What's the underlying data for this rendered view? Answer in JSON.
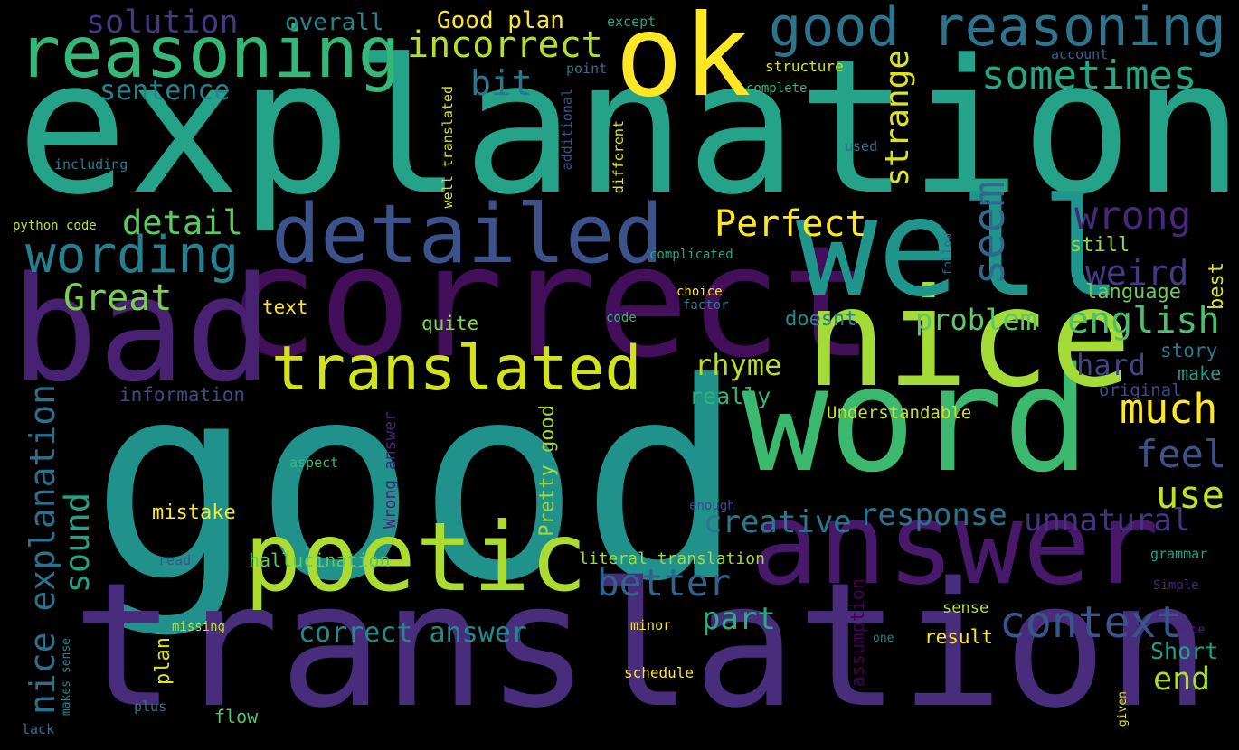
{
  "words": [
    {
      "text": "explanation",
      "color": "#24a388"
    },
    {
      "text": "good",
      "color": "#21918c"
    },
    {
      "text": "translation",
      "color": "#472d7b"
    },
    {
      "text": "correct",
      "color": "#440f5a"
    },
    {
      "text": "word",
      "color": "#3bb96f"
    },
    {
      "text": "nice",
      "color": "#a5db36"
    },
    {
      "text": "answer",
      "color": "#48196b"
    },
    {
      "text": "bad",
      "color": "#482173"
    },
    {
      "text": "well",
      "color": "#1f958b"
    },
    {
      "text": "ok",
      "color": "#fde725"
    },
    {
      "text": "poetic",
      "color": "#addc30"
    },
    {
      "text": "detailed",
      "color": "#3b528b"
    },
    {
      "text": "reasoning",
      "color": "#35b779"
    },
    {
      "text": "good reasoning",
      "color": "#2c738e"
    },
    {
      "text": "translated",
      "color": "#d2e21b"
    },
    {
      "text": "wording",
      "color": "#277f8e"
    },
    {
      "text": "context",
      "color": "#39568c"
    },
    {
      "text": "sometimes",
      "color": "#22a884"
    },
    {
      "text": "incorrect",
      "color": "#b5de2b"
    },
    {
      "text": "Perfect",
      "color": "#fde725"
    },
    {
      "text": "Great",
      "color": "#7ad151"
    },
    {
      "text": "detail",
      "color": "#5ec962"
    },
    {
      "text": "wrong",
      "color": "#482878"
    },
    {
      "text": "solution",
      "color": "#443983"
    },
    {
      "text": "seem",
      "color": "#31688e"
    },
    {
      "text": "strange",
      "color": "#dde318"
    },
    {
      "text": "much",
      "color": "#fde725"
    },
    {
      "text": "english",
      "color": "#4ac16d"
    },
    {
      "text": "problem",
      "color": "#5ec962"
    },
    {
      "text": "feel",
      "color": "#3b528b"
    },
    {
      "text": "use",
      "color": "#c0df25"
    },
    {
      "text": "weird",
      "color": "#443983"
    },
    {
      "text": "better",
      "color": "#33638d"
    },
    {
      "text": "nice explanation",
      "color": "#2d708e"
    },
    {
      "text": "sound",
      "color": "#20a386"
    },
    {
      "text": "creative",
      "color": "#2a788e"
    },
    {
      "text": "response",
      "color": "#2c728e"
    },
    {
      "text": "unnatural",
      "color": "#46337f"
    },
    {
      "text": "rhyme",
      "color": "#bade28"
    },
    {
      "text": "hard",
      "color": "#414487"
    },
    {
      "text": "part",
      "color": "#27ad81"
    },
    {
      "text": "correct answer",
      "color": "#228c8d"
    },
    {
      "text": "bit",
      "color": "#2a788e"
    },
    {
      "text": "sentence",
      "color": "#26828e"
    },
    {
      "text": "end",
      "color": "#aadc32"
    },
    {
      "text": "overall",
      "color": "#25848e"
    },
    {
      "text": "Good plan",
      "color": "#fde725"
    },
    {
      "text": "mistake",
      "color": "#fde725"
    },
    {
      "text": "plan",
      "color": "#dde318"
    },
    {
      "text": "Short",
      "color": "#1f9e89"
    },
    {
      "text": "really",
      "color": "#2fb47c"
    },
    {
      "text": "Understandable",
      "color": "#c8e020"
    },
    {
      "text": "information",
      "color": "#3e4a89"
    },
    {
      "text": "doesnt",
      "color": "#23898e"
    },
    {
      "text": "quite",
      "color": "#84d44b"
    },
    {
      "text": "text",
      "color": "#fde725"
    },
    {
      "text": "language",
      "color": "#6ccd5a"
    },
    {
      "text": "still",
      "color": "#90d743"
    },
    {
      "text": "best",
      "color": "#dde318"
    },
    {
      "text": "story",
      "color": "#2a788e"
    },
    {
      "text": "make",
      "color": "#1f988b"
    },
    {
      "text": "original",
      "color": "#3e4a89"
    },
    {
      "text": "Pretty good",
      "color": "#a0da39"
    },
    {
      "text": "Wrong answer",
      "color": "#482475"
    },
    {
      "text": "hallucination",
      "color": "#5ec962"
    },
    {
      "text": "literal translation",
      "color": "#a2da37"
    },
    {
      "text": "flow",
      "color": "#54c568"
    },
    {
      "text": "result",
      "color": "#fde725"
    },
    {
      "text": "assumption",
      "color": "#440154"
    },
    {
      "text": "grammar",
      "color": "#1fa088"
    },
    {
      "text": "sense",
      "color": "#b8de29"
    },
    {
      "text": "schedule",
      "color": "#fde725"
    },
    {
      "text": "minor",
      "color": "#fde725"
    },
    {
      "text": "except",
      "color": "#22a884"
    },
    {
      "text": "point",
      "color": "#2c728e"
    },
    {
      "text": "structure",
      "color": "#d8e219"
    },
    {
      "text": "account",
      "color": "#33638d"
    },
    {
      "text": "complete",
      "color": "#2fb47c"
    },
    {
      "text": "used",
      "color": "#2c728e"
    },
    {
      "text": "including",
      "color": "#277f8e"
    },
    {
      "text": "well translated",
      "color": "#d8e219"
    },
    {
      "text": "additional",
      "color": "#3b528b"
    },
    {
      "text": "different",
      "color": "#e5e419"
    },
    {
      "text": "python code",
      "color": "#bddf26"
    },
    {
      "text": "complicated",
      "color": "#22a884"
    },
    {
      "text": "follow",
      "color": "#31688e"
    },
    {
      "text": "choice",
      "color": "#fde725"
    },
    {
      "text": "factor",
      "color": "#2a788e"
    },
    {
      "text": "code",
      "color": "#2fb47c"
    },
    {
      "text": "aspect",
      "color": "#35b779"
    },
    {
      "text": "enough",
      "color": "#3e4a89"
    },
    {
      "text": "read",
      "color": "#365c8d"
    },
    {
      "text": "missing",
      "color": "#bddf26"
    },
    {
      "text": "makes sense",
      "color": "#26828e"
    },
    {
      "text": "plus",
      "color": "#2a788e"
    },
    {
      "text": "lack",
      "color": "#2c728e"
    },
    {
      "text": "one",
      "color": "#277f8e"
    },
    {
      "text": "made",
      "color": "#482878"
    },
    {
      "text": "Simple",
      "color": "#482878"
    },
    {
      "text": "given",
      "color": "#dde318"
    }
  ]
}
